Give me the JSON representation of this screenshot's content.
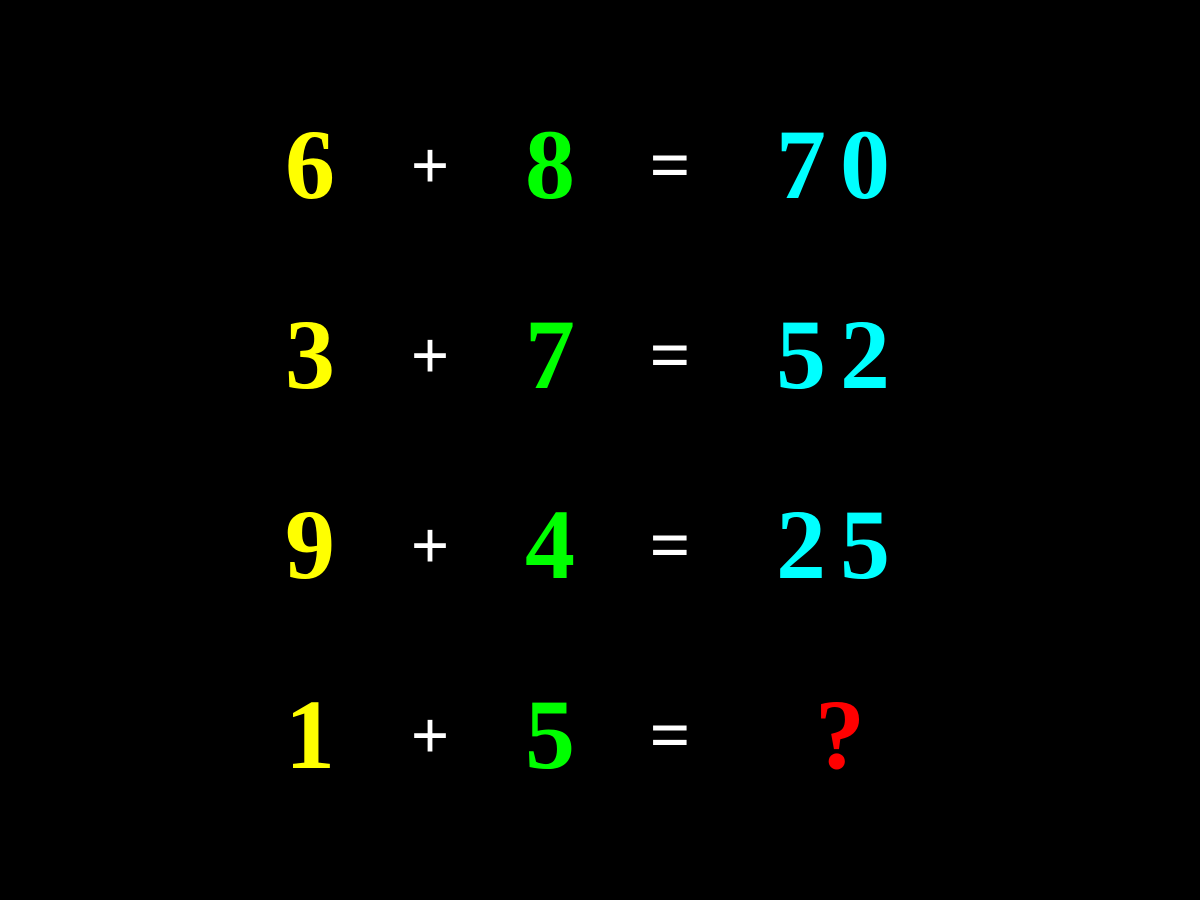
{
  "puzzle": {
    "type": "math-pattern-puzzle",
    "background_color": "#000000",
    "font_family": "Georgia, serif",
    "font_weight": "bold",
    "digit_fontsize": 100,
    "operator_fontsize": 68,
    "colors": {
      "operand_left": "#ffff00",
      "operator": "#ffffff",
      "operand_right": "#00ff00",
      "equals": "#ffffff",
      "result": "#00ffff",
      "unknown": "#ff0000"
    },
    "operator_symbol": "+",
    "equals_symbol": "=",
    "unknown_symbol": "?",
    "rows": [
      {
        "left": "6",
        "right": "8",
        "result": "70",
        "is_unknown": false
      },
      {
        "left": "3",
        "right": "7",
        "result": "52",
        "is_unknown": false
      },
      {
        "left": "9",
        "right": "4",
        "result": "25",
        "is_unknown": false
      },
      {
        "left": "1",
        "right": "5",
        "result": "?",
        "is_unknown": true
      }
    ]
  }
}
